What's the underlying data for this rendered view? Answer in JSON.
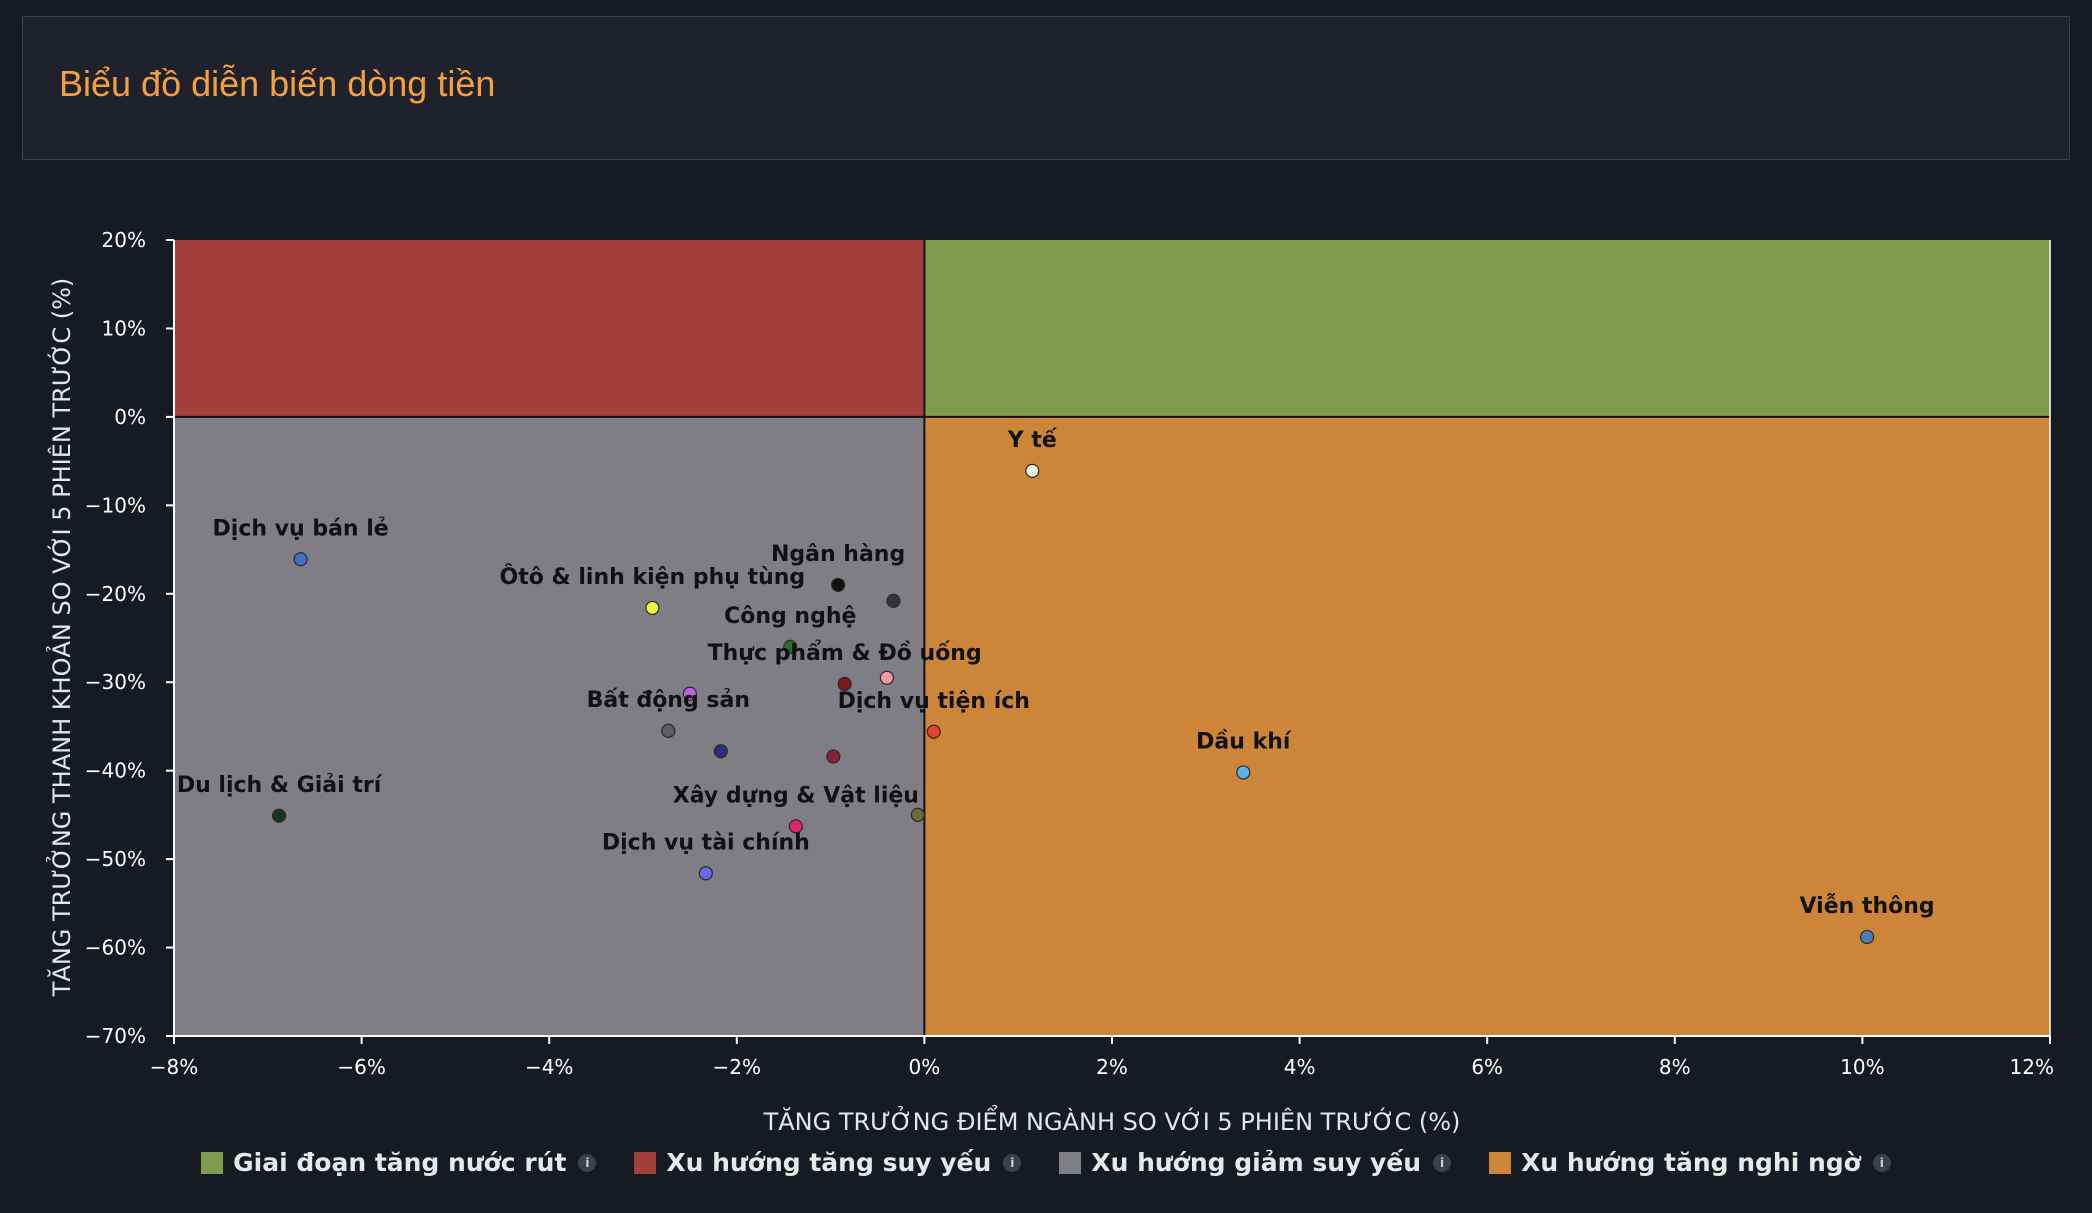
{
  "header": {
    "title": "Biểu đồ diễn biến dòng tiền"
  },
  "chart_data": {
    "type": "scatter",
    "xlabel": "TĂNG TRƯỞNG ĐIỂM NGÀNH SO VỚI 5 PHIÊN TRƯỚC (%)",
    "ylabel": "TĂNG TRƯỞNG THANH KHOẢN SO VỚI 5 PHIÊN TRƯỚC (%)",
    "xlim": [
      -8,
      12
    ],
    "ylim": [
      -70,
      20
    ],
    "x_ticks": [
      "−8%",
      "−6%",
      "−4%",
      "−2%",
      "0%",
      "2%",
      "4%",
      "6%",
      "8%",
      "10%",
      "12%"
    ],
    "y_ticks": [
      "20%",
      "10%",
      "0%",
      "−10%",
      "−20%",
      "−30%",
      "−40%",
      "−50%",
      "−60%",
      "−70%"
    ],
    "quadrants": [
      {
        "name": "Giai đoạn tăng nước rút",
        "color": "#7f9a4a",
        "region": "top-right"
      },
      {
        "name": "Xu hướng tăng suy yếu",
        "color": "#a3403c",
        "region": "top-left"
      },
      {
        "name": "Xu hướng giảm suy yếu",
        "color": "#7e7e84",
        "region": "bottom-left"
      },
      {
        "name": "Xu hướng tăng nghi ngờ",
        "color": "#cd8639",
        "region": "bottom-right"
      }
    ],
    "points": [
      {
        "label": "Y tế",
        "x": 1.15,
        "y": -6.1,
        "color": "#e6f0dc"
      },
      {
        "label": "Dịch vụ bán lẻ",
        "x": -6.65,
        "y": -16.1,
        "color": "#3f6fc8"
      },
      {
        "label": "Ôtô & linh kiện phụ tùng",
        "x": -2.9,
        "y": -21.6,
        "color": "#f2ee3c"
      },
      {
        "label": "Ngân hàng",
        "x": -0.92,
        "y": -19.0,
        "color": "#111111"
      },
      {
        "label": "",
        "x": -0.33,
        "y": -20.8,
        "color": "#333338"
      },
      {
        "label": "Công nghệ",
        "x": -1.43,
        "y": -26.0,
        "color": "#2f6a32"
      },
      {
        "label": "Thực phẩm & Đồ uống",
        "x": -0.85,
        "y": -30.2,
        "color": "#7a1a1a"
      },
      {
        "label": "",
        "x": -0.4,
        "y": -29.5,
        "color": "#f09aa0"
      },
      {
        "label": "",
        "x": -2.5,
        "y": -31.3,
        "color": "#c060e0"
      },
      {
        "label": "Bất động sản",
        "x": -2.73,
        "y": -35.5,
        "color": "#5e5e60"
      },
      {
        "label": "",
        "x": -2.17,
        "y": -37.8,
        "color": "#2a2f7a"
      },
      {
        "label": "",
        "x": -0.97,
        "y": -38.4,
        "color": "#8a1f3a"
      },
      {
        "label": "Dịch vụ tiện ích",
        "x": 0.1,
        "y": -35.6,
        "color": "#e0442a"
      },
      {
        "label": "Dầu khí",
        "x": 3.4,
        "y": -40.2,
        "color": "#58b2e6"
      },
      {
        "label": "Du lịch & Giải trí",
        "x": -6.88,
        "y": -45.1,
        "color": "#143818"
      },
      {
        "label": "Xây dựng & Vật liệu",
        "x": -1.37,
        "y": -46.3,
        "color": "#e0266a"
      },
      {
        "label": "",
        "x": -0.07,
        "y": -45.0,
        "color": "#6a6a34"
      },
      {
        "label": "Dịch vụ tài chính",
        "x": -2.33,
        "y": -51.6,
        "color": "#6a6ae6"
      },
      {
        "label": "Viễn thông",
        "x": 10.05,
        "y": -58.8,
        "color": "#4a7fb0"
      }
    ],
    "legend_position": "bottom"
  },
  "legend": {
    "items": [
      {
        "label": "Giai đoạn tăng nước rút",
        "color": "#7f9a4a"
      },
      {
        "label": "Xu hướng tăng suy yếu",
        "color": "#a3403c"
      },
      {
        "label": "Xu hướng giảm suy yếu",
        "color": "#7e7e84"
      },
      {
        "label": "Xu hướng tăng nghi ngờ",
        "color": "#cd8639"
      }
    ],
    "info_symbol": "i"
  }
}
